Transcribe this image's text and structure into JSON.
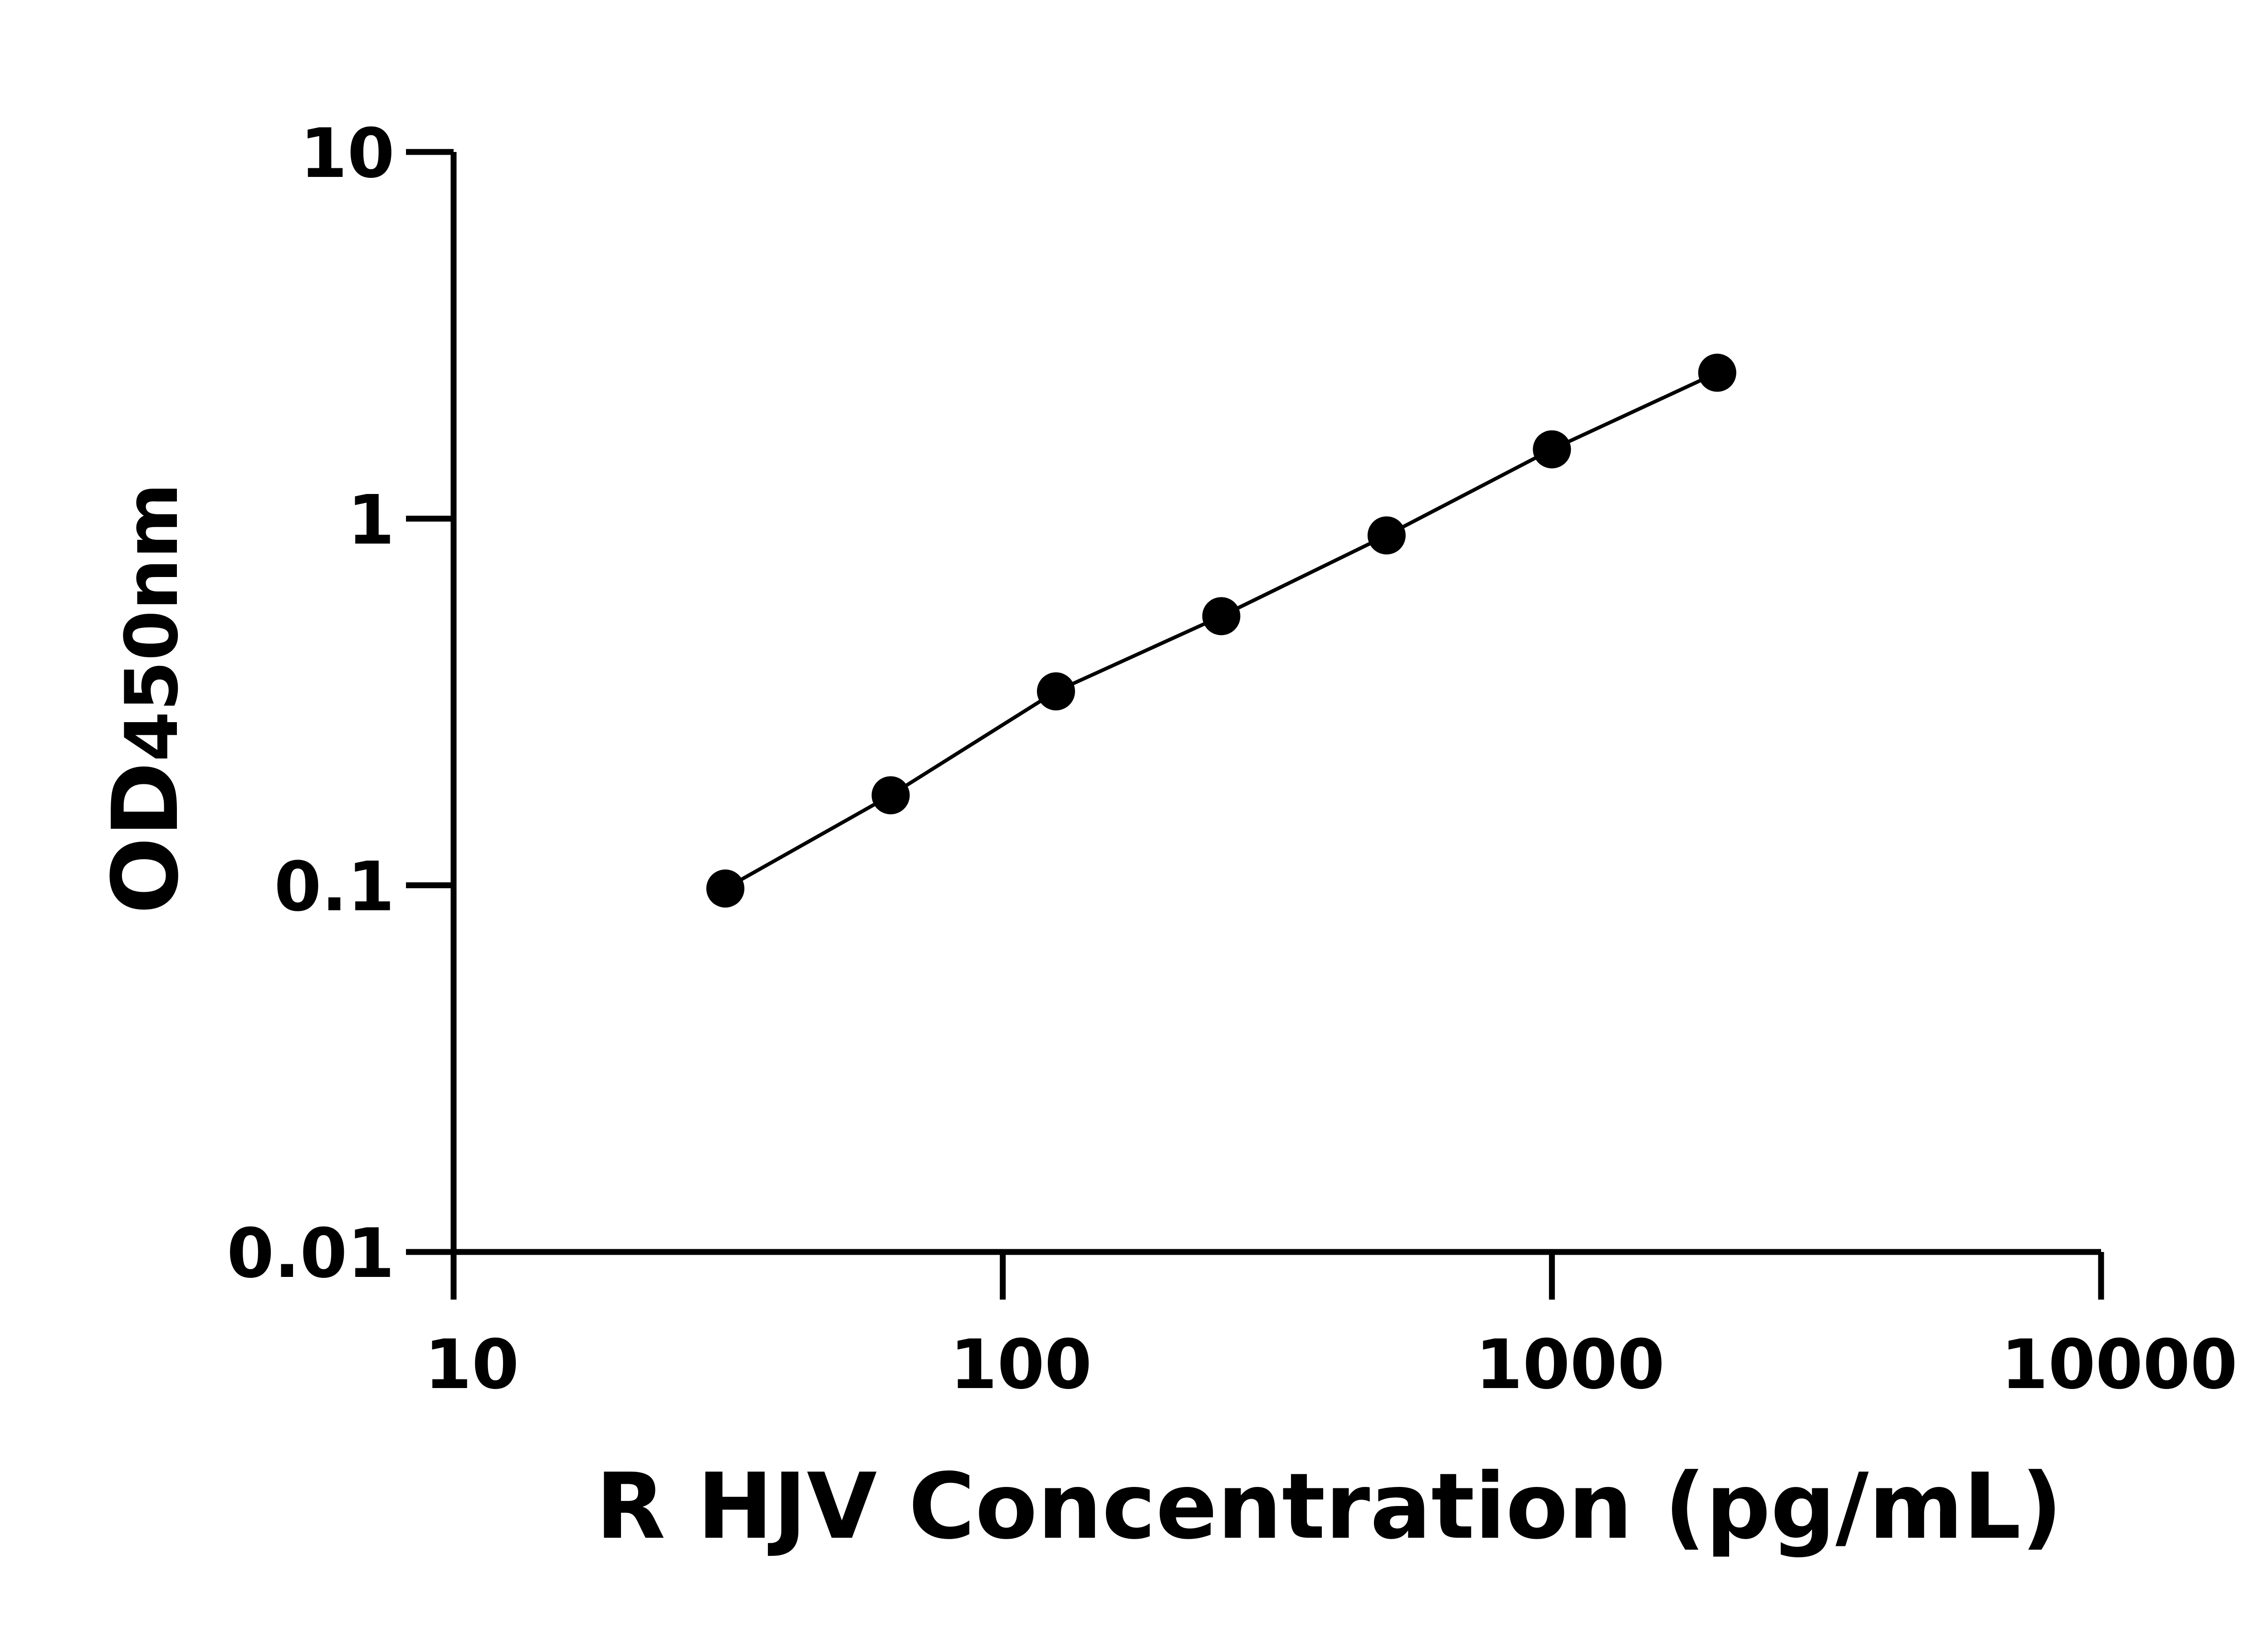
{
  "chart_data": {
    "type": "scatter",
    "title": "",
    "xlabel": "R HJV Concentration (pg/mL)",
    "ylabel": {
      "main": "OD",
      "sub": "450nm"
    },
    "xscale": "log",
    "yscale": "log",
    "xlim": [
      10,
      10000
    ],
    "ylim": [
      0.01,
      10
    ],
    "xticks": [
      "10",
      "100",
      "1000",
      "10000"
    ],
    "yticks": [
      "0.01",
      "0.1",
      "1",
      "10"
    ],
    "grid": false,
    "legend": "none",
    "connected_line": true,
    "marker_color": "#000000",
    "line_color": "#000000",
    "series": [
      {
        "x": [
          31.25,
          62.5,
          125,
          250,
          500,
          1000,
          2000
        ],
        "y": [
          0.098,
          0.176,
          0.338,
          0.542,
          0.9,
          1.545,
          2.5
        ]
      }
    ]
  }
}
